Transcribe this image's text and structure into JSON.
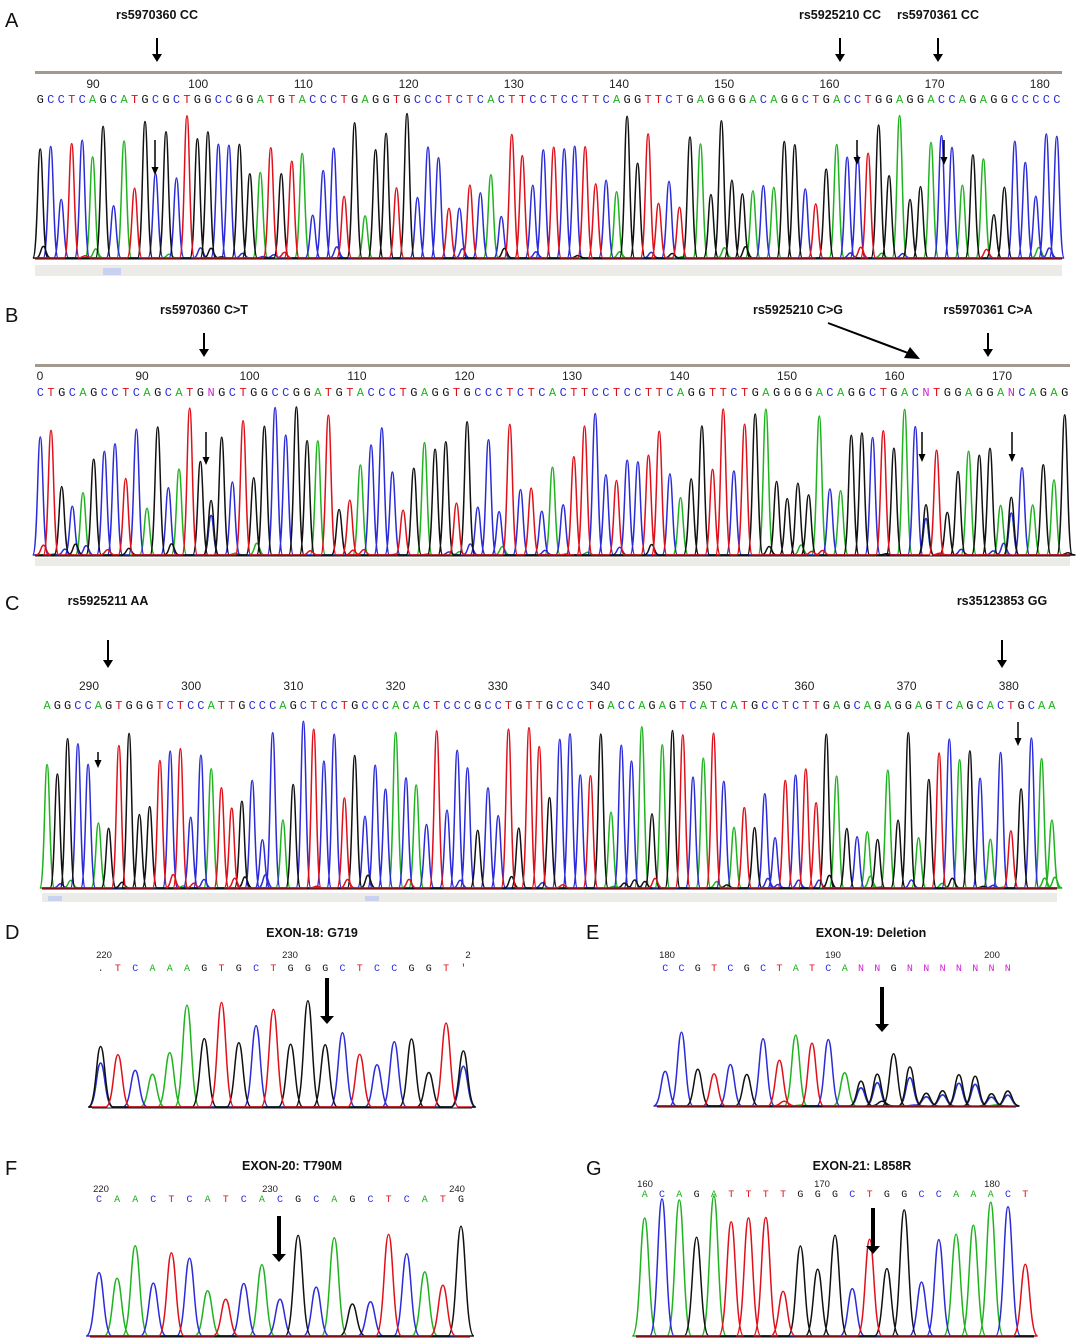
{
  "colors": {
    "A": "#1fb31f",
    "C": "#2b2bd9",
    "G": "#111111",
    "T": "#e0101a",
    "N": "#d020d0"
  },
  "panels": [
    {
      "letter": "A",
      "y0": 0,
      "snps": [
        {
          "label": "rs5970360 CC",
          "x": 157,
          "pos": 96
        },
        {
          "label": "rs5925210 CC",
          "x": 840,
          "pos": 162
        },
        {
          "label": "rs5970361 CC",
          "x": 938,
          "pos": 171
        }
      ],
      "start": 85,
      "end": 182,
      "pxPer": 10.25,
      "xAt90": 92,
      "ticks": [
        "90",
        "100",
        "110",
        "120",
        "130",
        "140",
        "150",
        "160",
        "170",
        "180"
      ],
      "sequence": "GCCTCAGCATGCGCTGGCCGGATGTACCCTGAGGTGCCCTCTCACTTCCTCCTTCAGGTTCTGAGGGGACAGGCTGACCTGGAGGACCAGAGGCCCCC"
    },
    {
      "letter": "B",
      "y0": 295,
      "snps": [
        {
          "label": "rs5970360 C>T",
          "x": 204,
          "pos": 96
        },
        {
          "label": "rs5925210 C>G",
          "x": 798,
          "pos": 163
        },
        {
          "label": "rs5970361 C>A",
          "x": 988,
          "pos": 171
        }
      ],
      "start": 84,
      "end": 180,
      "pxPer": 10.7,
      "xAt90": 142,
      "ticks": [
        "0",
        "90",
        "100",
        "110",
        "120",
        "130",
        "140",
        "150",
        "160",
        "170"
      ],
      "sequence": "CTGCAGCCTCAGCATGNGCTGGCCGGATGTACCCTGAGGTGCCCTCTCACTTCCTCCTTCAGGTTCTGAGGGGACAGGCTGACNTGGAGGANCAGAG"
    },
    {
      "letter": "C",
      "y0": 590,
      "snps": [
        {
          "label": "rs5925211 AA",
          "x": 108,
          "pos": 290
        },
        {
          "label": "rs35123853 GG",
          "x": 1002,
          "pos": 380
        }
      ],
      "start": 285,
      "end": 387,
      "pxPer": 10.2,
      "xAt90": 90,
      "tickBase": 290,
      "ticks": [
        "290",
        "300",
        "310",
        "320",
        "330",
        "340",
        "350",
        "360",
        "370",
        "380"
      ],
      "sequence": "AGGCCAGTGGGTCTCCATTGCCCAGCTCCTGCCCACACTCCCGCCTGTTGCCCTGACCAGAGTCATCATGCCTCTTGAGCAGAGGAGTCAGCACTGCAA"
    }
  ],
  "exons": [
    {
      "letter": "D",
      "title": "EXON-18: G719",
      "ticks": [
        "220",
        "230",
        "2"
      ],
      "sequence": ".TCAAAGTGCTGGGCTCCGGT'"
    },
    {
      "letter": "E",
      "title": "EXON-19: Deletion",
      "ticks": [
        "180",
        "190",
        "200"
      ],
      "sequence": "CCGTCGCTATCANNGNNNNNNN"
    },
    {
      "letter": "F",
      "title": "EXON-20: T790M",
      "ticks": [
        "220",
        "230",
        "240"
      ],
      "sequence": "CAACTCATCACGCAGCTCATG"
    },
    {
      "letter": "G",
      "title": "EXON-21: L858R",
      "ticks": [
        "160",
        "170",
        "180"
      ],
      "sequence": "ACAGATTTTGGGCTGGCCAAACT"
    }
  ]
}
